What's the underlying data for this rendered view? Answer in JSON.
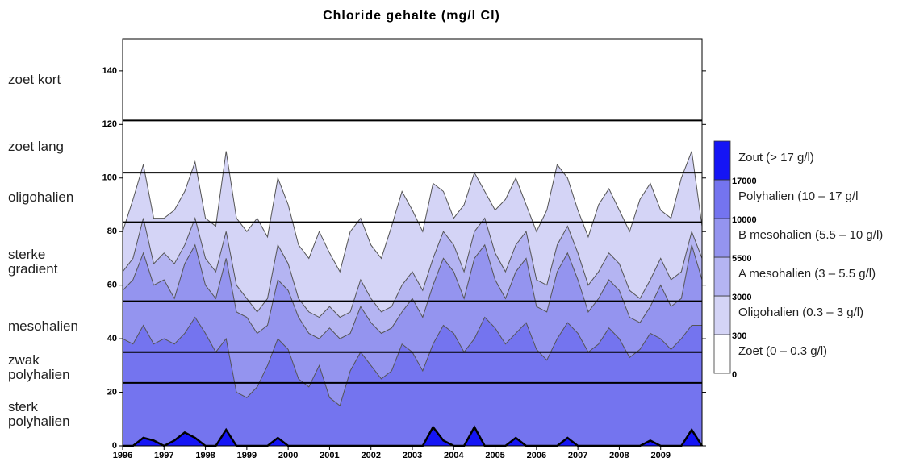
{
  "chart_data": {
    "type": "contour",
    "title": "Chloride gehalte (mg/l Cl)",
    "xlim": [
      1996,
      2010
    ],
    "xticks": [
      1996,
      1997,
      1998,
      1999,
      2000,
      2001,
      2002,
      2003,
      2004,
      2005,
      2006,
      2007,
      2008,
      2009
    ],
    "ylim": [
      0,
      152
    ],
    "yticks": [
      0,
      20,
      40,
      60,
      80,
      100,
      120,
      140
    ],
    "x": [
      1996,
      1996.25,
      1996.5,
      1996.75,
      1997,
      1997.25,
      1997.5,
      1997.75,
      1998,
      1998.25,
      1998.5,
      1998.75,
      1999,
      1999.25,
      1999.5,
      1999.75,
      2000,
      2000.25,
      2000.5,
      2000.75,
      2001,
      2001.25,
      2001.5,
      2001.75,
      2002,
      2002.25,
      2002.5,
      2002.75,
      2003,
      2003.25,
      2003.5,
      2003.75,
      2004,
      2004.25,
      2004.5,
      2004.75,
      2005,
      2005.25,
      2005.5,
      2005.75,
      2006,
      2006.25,
      2006.5,
      2006.75,
      2007,
      2007.25,
      2007.5,
      2007.75,
      2008,
      2008.25,
      2008.5,
      2008.75,
      2009,
      2009.25,
      2009.5,
      2009.75,
      2010
    ],
    "series": [
      {
        "level": 300,
        "values": [
          80,
          92,
          105,
          85,
          85,
          88,
          95,
          106,
          85,
          82,
          110,
          85,
          80,
          85,
          78,
          100,
          90,
          75,
          70,
          80,
          72,
          65,
          80,
          85,
          75,
          70,
          82,
          95,
          88,
          80,
          98,
          95,
          85,
          90,
          102,
          95,
          88,
          92,
          100,
          90,
          80,
          88,
          105,
          100,
          88,
          78,
          90,
          96,
          88,
          80,
          92,
          98,
          88,
          85,
          100,
          110,
          82
        ]
      },
      {
        "level": 3000,
        "values": [
          65,
          70,
          85,
          68,
          72,
          68,
          75,
          85,
          70,
          65,
          80,
          60,
          55,
          50,
          55,
          75,
          68,
          55,
          50,
          48,
          52,
          48,
          50,
          62,
          55,
          50,
          52,
          60,
          65,
          58,
          70,
          80,
          75,
          65,
          80,
          85,
          72,
          65,
          75,
          80,
          62,
          60,
          75,
          82,
          72,
          60,
          65,
          72,
          68,
          58,
          55,
          62,
          70,
          62,
          65,
          80,
          70
        ]
      },
      {
        "level": 5500,
        "values": [
          58,
          62,
          72,
          60,
          62,
          55,
          68,
          75,
          60,
          55,
          70,
          50,
          48,
          42,
          45,
          62,
          58,
          48,
          42,
          40,
          44,
          40,
          42,
          52,
          46,
          42,
          44,
          50,
          55,
          48,
          60,
          70,
          65,
          55,
          70,
          75,
          62,
          55,
          65,
          70,
          52,
          50,
          65,
          72,
          62,
          50,
          55,
          62,
          58,
          48,
          46,
          52,
          60,
          52,
          55,
          75,
          62
        ]
      },
      {
        "level": 10000,
        "values": [
          40,
          38,
          45,
          38,
          40,
          38,
          42,
          48,
          42,
          35,
          40,
          20,
          18,
          22,
          30,
          40,
          36,
          25,
          22,
          30,
          18,
          15,
          28,
          35,
          30,
          25,
          28,
          38,
          35,
          28,
          38,
          45,
          42,
          35,
          40,
          48,
          44,
          38,
          42,
          46,
          36,
          32,
          40,
          46,
          42,
          35,
          38,
          44,
          40,
          33,
          36,
          42,
          40,
          36,
          40,
          45,
          45
        ]
      },
      {
        "level": 17000,
        "values": [
          0,
          0,
          3,
          2,
          0,
          2,
          5,
          3,
          0,
          0,
          6,
          0,
          0,
          0,
          0,
          3,
          0,
          0,
          0,
          0,
          0,
          0,
          0,
          0,
          0,
          0,
          0,
          0,
          0,
          0,
          7,
          2,
          0,
          0,
          7,
          0,
          0,
          0,
          3,
          0,
          0,
          0,
          0,
          3,
          0,
          0,
          0,
          0,
          0,
          0,
          0,
          2,
          0,
          0,
          0,
          6,
          0
        ]
      }
    ],
    "legend": {
      "levels": [
        0,
        300,
        3000,
        5500,
        10000,
        17000
      ],
      "classes": [
        {
          "name": "Zoet (0 – 0.3 g/l)",
          "color": "#ffffff"
        },
        {
          "name": "Oligohalien (0.3 – 3 g/l)",
          "color": "#d4d4f6"
        },
        {
          "name": "A mesohalien (3 – 5.5 g/l)",
          "color": "#b4b4f2"
        },
        {
          "name": "B mesohalien (5.5 – 10 g/l)",
          "color": "#9494ef"
        },
        {
          "name": "Polyhalien (10 – 17 g/l",
          "color": "#7474ef"
        },
        {
          "name": "Zout (> 17 g/l)",
          "color": "#1515f5"
        }
      ]
    },
    "zones": [
      {
        "name": "zoet kort",
        "from": 121.5,
        "to": 152
      },
      {
        "name": "zoet lang",
        "from": 102,
        "to": 121.5
      },
      {
        "name": "oligohalien",
        "from": 83.5,
        "to": 102
      },
      {
        "name": "sterke gradient",
        "from": 54,
        "to": 83.5
      },
      {
        "name": "mesohalien",
        "from": 35,
        "to": 54
      },
      {
        "name": "zwak polyhalien",
        "from": 23.5,
        "to": 35
      },
      {
        "name": "sterk polyhalien",
        "from": 0,
        "to": 23.5
      }
    ]
  }
}
